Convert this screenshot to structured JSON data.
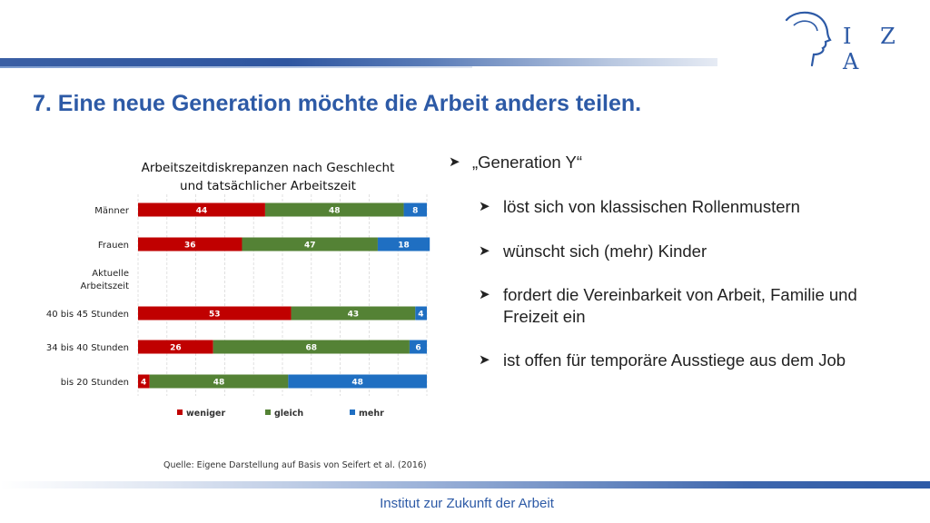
{
  "logo": {
    "text": "I Z A",
    "icon": "head-profile-icon"
  },
  "title": "7. Eine neue Generation möchte die Arbeit anders teilen.",
  "bullets": {
    "main": "„Generation Y“",
    "items": [
      "löst sich von klassischen Rollenmustern",
      "wünscht sich (mehr) Kinder",
      "fordert die Vereinbarkeit von Arbeit, Familie und Freizeit ein",
      "ist offen für temporäre Ausstiege aus dem Job"
    ],
    "icon": "arrow-bullet-icon"
  },
  "source": "Quelle: Eigene Darstellung auf Basis von Seifert et al. (2016)",
  "footer": "Institut zur Zukunft der Arbeit",
  "colors": {
    "weniger": "#c00000",
    "gleich": "#548235",
    "mehr": "#1f6fc2",
    "accent": "#2d5aa6"
  },
  "chart_data": {
    "type": "bar",
    "orientation": "horizontal",
    "stacked": true,
    "title_lines": [
      "Arbeitszeitdiskrepanzen nach Geschlecht",
      "und tatsächlicher Arbeitszeit"
    ],
    "categories": [
      "Männer",
      "Frauen",
      "Aktuelle Arbeitszeit",
      "40 bis 45 Stunden",
      "34 bis 40 Stunden",
      "bis 20 Stunden"
    ],
    "series": [
      {
        "name": "weniger",
        "values": [
          44,
          36,
          null,
          53,
          26,
          4
        ]
      },
      {
        "name": "gleich",
        "values": [
          48,
          47,
          null,
          43,
          68,
          48
        ]
      },
      {
        "name": "mehr",
        "values": [
          8,
          18,
          null,
          4,
          6,
          48
        ]
      }
    ],
    "xlim": [
      0,
      100
    ],
    "grid": "vertical dashed",
    "legend": "bottom"
  }
}
